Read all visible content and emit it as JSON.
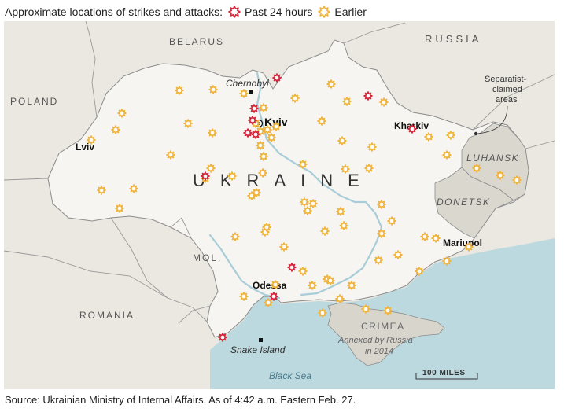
{
  "legend": {
    "title": "Approximate locations of strikes and attacks:",
    "recent_label": "Past 24 hours",
    "earlier_label": "Earlier",
    "recent_color": "#d6243a",
    "earlier_color": "#f0b43c"
  },
  "labels": {
    "belarus": "BELARUS",
    "russia": "RUSSIA",
    "poland": "POLAND",
    "romania": "ROMANIA",
    "moldova": "MOL.",
    "ukraine": "UKRAINE",
    "chernobyl": "Chernobyl",
    "kyiv": "Kyiv",
    "kharkiv": "Kharkiv",
    "lviv": "Lviv",
    "odessa": "Odessa",
    "mariupol": "Mariupol",
    "snake_island": "Snake Island",
    "black_sea": "Black Sea",
    "crimea": "CRIMEA",
    "crimea_note_1": "Annexed by Russia",
    "crimea_note_2": "in 2014",
    "luhansk": "LUHANSK",
    "donetsk": "DONETSK",
    "separatist_1": "Separatist-",
    "separatist_2": "claimed",
    "separatist_3": "areas",
    "scale": "100 MILES"
  },
  "colors": {
    "land": "#ebe8e1",
    "ukraine": "#f6f5f1",
    "separatist": "#dad7cf",
    "sea": "#bcd9df",
    "river": "#a8cdd8",
    "border": "#8c8c8c"
  },
  "source": "Source: Ukrainian Ministry of Internal Affairs. As of 4:42 a.m. Eastern Feb. 27."
}
